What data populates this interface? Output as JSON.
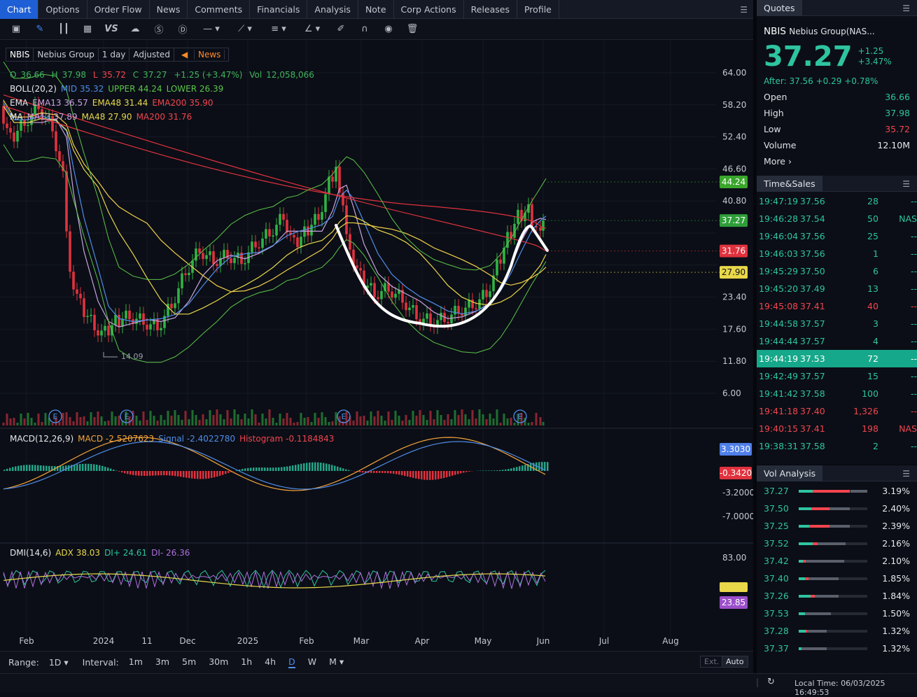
{
  "tabs": [
    "Chart",
    "Options",
    "Order Flow",
    "News",
    "Comments",
    "Financials",
    "Analysis",
    "Note",
    "Corp Actions",
    "Releases",
    "Profile"
  ],
  "toolbar_icons": [
    "candle-chart-icon",
    "pencil-icon",
    "bar-type-icon",
    "grid-icon",
    "vs-icon",
    "cloud-icon",
    "dollar-icon",
    "d-icon",
    "line-tool-icon",
    "node-tool-icon",
    "fib-tool-icon",
    "measure-tool-icon",
    "brush-icon",
    "magnet-icon",
    "eye-icon",
    "trash-icon"
  ],
  "header": {
    "symbol": "NBIS",
    "name": "Nebius Group",
    "period": "1 day",
    "adjust": "Adjusted",
    "news": "News"
  },
  "ohlc": {
    "o_label": "O",
    "o": "36.66",
    "h_label": "H",
    "h": "37.98",
    "l_label": "L",
    "l": "35.72",
    "c_label": "C",
    "c": "37.27",
    "chg": "+1.25 (+3.47%)",
    "vol_label": "Vol",
    "vol": "12,058,066"
  },
  "boll": {
    "label": "BOLL(20,2)",
    "mid": "MID 35.32",
    "upper": "UPPER 44.24",
    "lower": "LOWER 26.39"
  },
  "ema": {
    "label": "EMA",
    "e13": "EMA13 36.57",
    "e48": "EMA48 31.44",
    "e200": "EMA200 35.90"
  },
  "ma": {
    "label": "MA",
    "m13": "MA13 37.89",
    "m48": "MA48 27.90",
    "m200": "MA200 31.76"
  },
  "macd": {
    "label": "MACD(12,26,9)",
    "macd": "MACD -2.5207623",
    "signal": "Signal -2.4022780",
    "hist": "Histogram -0.1184843"
  },
  "dmi": {
    "label": "DMI(14,6)",
    "adx": "ADX 38.03",
    "dip": "DI+ 24.61",
    "dim": "DI- 26.36"
  },
  "price_axis": [
    "64.00",
    "58.20",
    "52.40",
    "46.60",
    "40.80",
    "23.40",
    "17.60",
    "11.80",
    "6.00"
  ],
  "price_tags": [
    {
      "text": "44.24",
      "bg": "#3aa62c",
      "price": 44.24
    },
    {
      "text": "37.27",
      "bg": "#2f9e3a",
      "price": 37.27
    },
    {
      "text": "31.76",
      "bg": "#e0323e",
      "price": 31.76
    },
    {
      "text": "27.90",
      "bg": "#e8d84a",
      "price": 27.9
    }
  ],
  "low_marker": "14.09",
  "earnings_marker": "E",
  "macd_axis": [
    "-3.2000",
    "-7.0000"
  ],
  "macd_tags": [
    {
      "text": "3.3030",
      "bg": "#4f7fe8"
    },
    {
      "text": "-0.3420",
      "bg": "#e0323e"
    }
  ],
  "dmi_axis": [
    "83.00"
  ],
  "dmi_tags": [
    {
      "text": "23.85",
      "bg": "#9b4fc9"
    }
  ],
  "x_axis": [
    "Feb",
    "2024",
    "11",
    "Dec",
    "2025",
    "Feb",
    "Mar",
    "Apr",
    "May",
    "Jun",
    "Jul",
    "Aug"
  ],
  "bottom": {
    "range_label": "Range:",
    "range_value": "1D",
    "interval_label": "Interval:",
    "intervals": [
      "1m",
      "3m",
      "5m",
      "30m",
      "1h",
      "4h",
      "D",
      "W",
      "M"
    ],
    "active_interval": "D",
    "ext": "Ext.",
    "auto": "Auto"
  },
  "status": {
    "local_time": "Local Time: 06/03/2025 16:49:53"
  },
  "quotes": {
    "title": "Quotes",
    "symbol": "NBIS",
    "name": "Nebius Group(NAS...",
    "price": "37.27",
    "chg": "+1.25",
    "chg_pct": "+3.47%",
    "after": "After: 37.56 +0.29 +0.78%",
    "rows": [
      {
        "k": "Open",
        "v": "36.66",
        "c": "#2ec4a0"
      },
      {
        "k": "High",
        "v": "37.98",
        "c": "#2ec4a0"
      },
      {
        "k": "Low",
        "v": "35.72",
        "c": "#f2454f"
      },
      {
        "k": "Volume",
        "v": "12.10M",
        "c": "#e6e8ec"
      }
    ],
    "more": "More ›"
  },
  "time_sales": {
    "title": "Time&Sales",
    "rows": [
      {
        "t": "19:47:19",
        "p": "37.56",
        "q": "28",
        "x": "--",
        "dir": "up"
      },
      {
        "t": "19:46:28",
        "p": "37.54",
        "q": "50",
        "x": "NAS",
        "dir": "up"
      },
      {
        "t": "19:46:04",
        "p": "37.56",
        "q": "25",
        "x": "--",
        "dir": "up"
      },
      {
        "t": "19:46:03",
        "p": "37.56",
        "q": "1",
        "x": "--",
        "dir": "up"
      },
      {
        "t": "19:45:29",
        "p": "37.50",
        "q": "6",
        "x": "--",
        "dir": "up"
      },
      {
        "t": "19:45:20",
        "p": "37.49",
        "q": "13",
        "x": "--",
        "dir": "up"
      },
      {
        "t": "19:45:08",
        "p": "37.41",
        "q": "40",
        "x": "--",
        "dir": "down"
      },
      {
        "t": "19:44:58",
        "p": "37.57",
        "q": "3",
        "x": "--",
        "dir": "up"
      },
      {
        "t": "19:44:44",
        "p": "37.57",
        "q": "4",
        "x": "--",
        "dir": "up"
      },
      {
        "t": "19:44:19",
        "p": "37.53",
        "q": "72",
        "x": "--",
        "dir": "hl"
      },
      {
        "t": "19:42:49",
        "p": "37.57",
        "q": "15",
        "x": "--",
        "dir": "up"
      },
      {
        "t": "19:41:42",
        "p": "37.58",
        "q": "100",
        "x": "--",
        "dir": "up"
      },
      {
        "t": "19:41:18",
        "p": "37.40",
        "q": "1,326",
        "x": "--",
        "dir": "down"
      },
      {
        "t": "19:40:15",
        "p": "37.41",
        "q": "198",
        "x": "NAS",
        "dir": "down"
      },
      {
        "t": "19:38:31",
        "p": "37.58",
        "q": "2",
        "x": "--",
        "dir": "up"
      }
    ]
  },
  "vol_analysis": {
    "title": "Vol Analysis",
    "rows": [
      {
        "p": "37.27",
        "pct": "3.19%",
        "g": 0.2,
        "r": 0.55,
        "share": 1.0
      },
      {
        "p": "37.50",
        "pct": "2.40%",
        "g": 0.25,
        "r": 0.35,
        "share": 0.75
      },
      {
        "p": "37.25",
        "pct": "2.39%",
        "g": 0.2,
        "r": 0.4,
        "share": 0.75
      },
      {
        "p": "37.52",
        "pct": "2.16%",
        "g": 0.3,
        "r": 0.1,
        "share": 0.68
      },
      {
        "p": "37.42",
        "pct": "2.10%",
        "g": 0.1,
        "r": 0.05,
        "share": 0.66
      },
      {
        "p": "37.40",
        "pct": "1.85%",
        "g": 0.15,
        "r": 0.1,
        "share": 0.58
      },
      {
        "p": "37.26",
        "pct": "1.84%",
        "g": 0.3,
        "r": 0.1,
        "share": 0.58
      },
      {
        "p": "37.53",
        "pct": "1.50%",
        "g": 0.2,
        "r": 0.0,
        "share": 0.47
      },
      {
        "p": "37.28",
        "pct": "1.32%",
        "g": 0.25,
        "r": 0.05,
        "share": 0.41
      },
      {
        "p": "37.37",
        "pct": "1.32%",
        "g": 0.1,
        "r": 0.0,
        "share": 0.41
      }
    ]
  },
  "colors": {
    "up": "#2ec4a0",
    "down": "#f2454f",
    "accent": "#1e5fd6",
    "highlight": "#16a88a"
  }
}
